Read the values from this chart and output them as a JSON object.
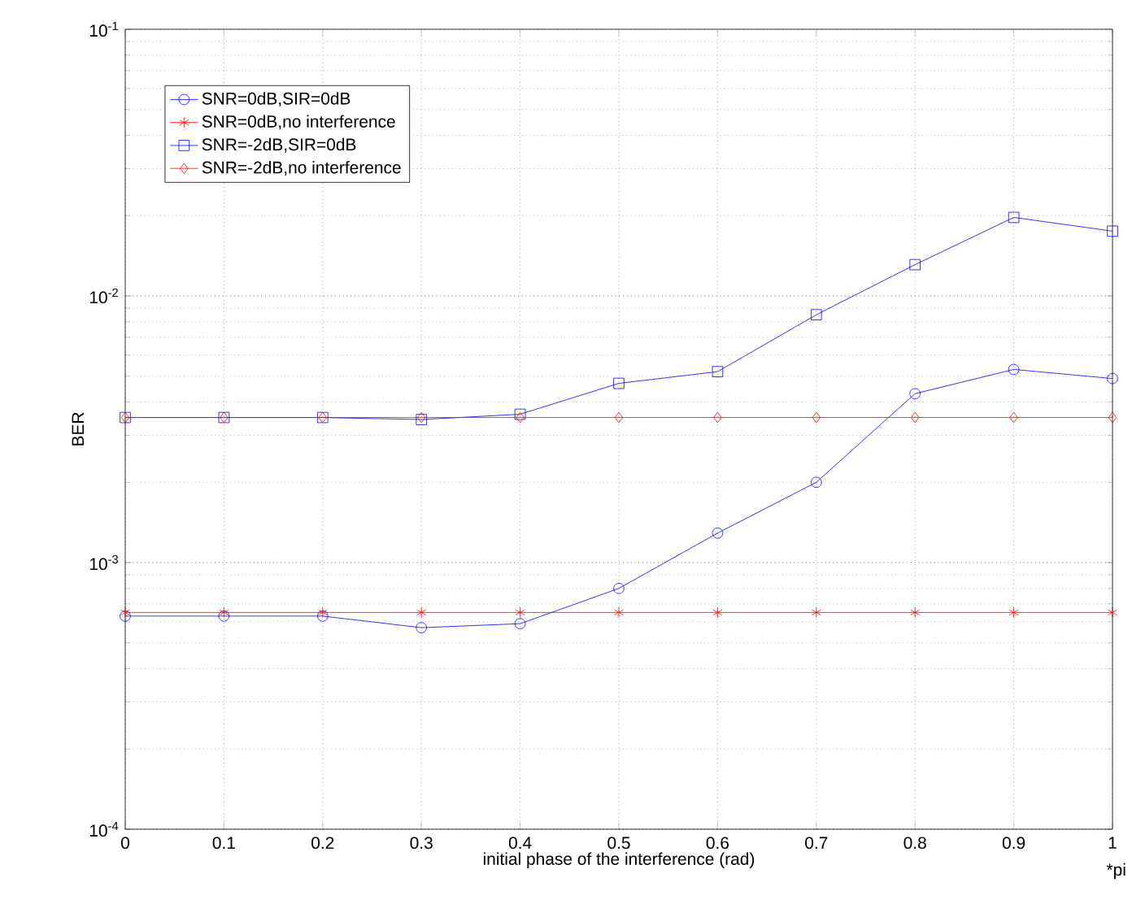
{
  "chart_data": {
    "type": "line",
    "xlabel": "initial phase of the interference (rad)",
    "ylabel": "BER",
    "annotations": [
      "*pi"
    ],
    "x": [
      0,
      0.1,
      0.2,
      0.3,
      0.4,
      0.5,
      0.6,
      0.7,
      0.8,
      0.9,
      1
    ],
    "series": [
      {
        "name": "SNR=0dB,SIR=0dB",
        "color": "#0000ff",
        "marker": "circle",
        "values": [
          0.00063,
          0.00063,
          0.00063,
          0.00057,
          0.00059,
          0.0008,
          0.00129,
          0.002,
          0.0043,
          0.0053,
          0.0049
        ]
      },
      {
        "name": "SNR=0dB,no interference",
        "color": "#ff0000",
        "marker": "cross",
        "values": [
          0.00065,
          0.00065,
          0.00065,
          0.00065,
          0.00065,
          0.00065,
          0.00065,
          0.00065,
          0.00065,
          0.00065,
          0.00065
        ]
      },
      {
        "name": "SNR=-2dB,SIR=0dB",
        "color": "#0000ff",
        "marker": "square",
        "values": [
          0.0035,
          0.0035,
          0.0035,
          0.00344,
          0.0036,
          0.0047,
          0.0052,
          0.0085,
          0.0131,
          0.0197,
          0.0175
        ]
      },
      {
        "name": "SNR=-2dB,no interference",
        "color": "#ff0000",
        "marker": "diamond",
        "values": [
          0.0035,
          0.0035,
          0.0035,
          0.0035,
          0.0035,
          0.0035,
          0.0035,
          0.0035,
          0.0035,
          0.0035,
          0.0035
        ]
      }
    ],
    "xlim": [
      0,
      1
    ],
    "xticks": [
      0,
      0.1,
      0.2,
      0.3,
      0.4,
      0.5,
      0.6,
      0.7,
      0.8,
      0.9,
      1
    ],
    "ylim": [
      0.0001,
      0.1
    ],
    "yticks": [
      {
        "value": 0.0001,
        "label": "10$^{-4}$"
      },
      {
        "value": 0.001,
        "label": "10$^{-3}$"
      },
      {
        "value": 0.01,
        "label": "10$^{-2}$"
      },
      {
        "value": 0.1,
        "label": "10$^{-1}$"
      }
    ],
    "log": "y",
    "grid": true,
    "legend": "top left",
    "line_style": "solid"
  }
}
